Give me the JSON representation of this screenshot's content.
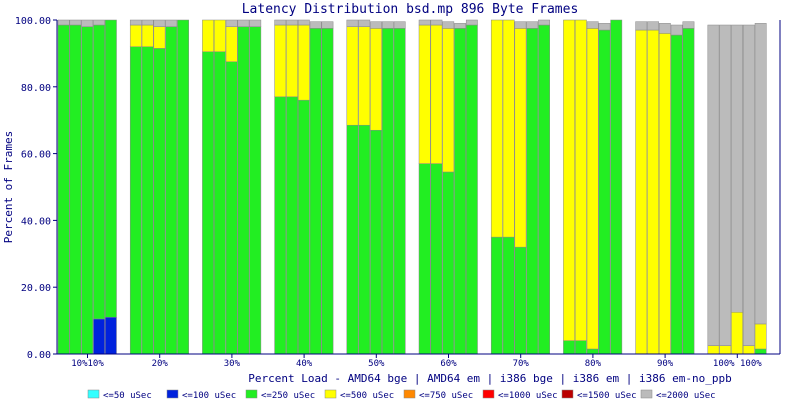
{
  "chart_data": {
    "type": "bar",
    "stacked": true,
    "title": "Latency Distribution bsd.mp 896 Byte Frames",
    "xlabel": "Percent Load - AMD64 bge | AMD64 em | i386 bge | i386 em | i386 em-no_ppb",
    "ylabel": "Percent of Frames",
    "ylim": [
      0,
      100
    ],
    "yticks": [
      "0.00",
      "20.00",
      "40.00",
      "60.00",
      "80.00",
      "100.00"
    ],
    "grid": false,
    "legend_position": "bottom",
    "categories": [
      "10%",
      "20%",
      "30%",
      "40%",
      "50%",
      "60%",
      "70%",
      "80%",
      "90%",
      "100%"
    ],
    "category_tick_labels": [
      "10%10%",
      "20%",
      "30%",
      "40%",
      "50%",
      "60%",
      "70%",
      "80%",
      "90%",
      "100% 100%"
    ],
    "bars_per_category": 5,
    "series": [
      {
        "name": "<=50 uSec",
        "color": "#33ffff",
        "values": [
          [
            0,
            0,
            0,
            0,
            0
          ],
          [
            0,
            0,
            0,
            0,
            0
          ],
          [
            0,
            0,
            0,
            0,
            0
          ],
          [
            0,
            0,
            0,
            0,
            0
          ],
          [
            0,
            0,
            0,
            0,
            0
          ],
          [
            0,
            0,
            0,
            0,
            0
          ],
          [
            0,
            0,
            0,
            0,
            0
          ],
          [
            0,
            0,
            0,
            0,
            0
          ],
          [
            0,
            0,
            0,
            0,
            0
          ],
          [
            0,
            0,
            0,
            0,
            0
          ]
        ]
      },
      {
        "name": "<=100 uSec",
        "color": "#0022dd",
        "values": [
          [
            0,
            0,
            0,
            10.5,
            11
          ],
          [
            0,
            0,
            0,
            0,
            0
          ],
          [
            0,
            0,
            0,
            0,
            0
          ],
          [
            0,
            0,
            0,
            0,
            0
          ],
          [
            0,
            0,
            0,
            0,
            0
          ],
          [
            0,
            0,
            0,
            0,
            0
          ],
          [
            0,
            0,
            0,
            0,
            0
          ],
          [
            0,
            0,
            0,
            0,
            0
          ],
          [
            0,
            0,
            0,
            0,
            0
          ],
          [
            0,
            0,
            0,
            0,
            0
          ]
        ]
      },
      {
        "name": "<=250 uSec",
        "color": "#22ee22",
        "values": [
          [
            98.5,
            98.5,
            98,
            88,
            89
          ],
          [
            92,
            92,
            91.5,
            98,
            100
          ],
          [
            90.5,
            90.5,
            87.5,
            98,
            98
          ],
          [
            77,
            77,
            76,
            97.5,
            97.5
          ],
          [
            68.5,
            68.5,
            67,
            97.5,
            97.5
          ],
          [
            57,
            57,
            54.5,
            97.5,
            98.5
          ],
          [
            35,
            35,
            32,
            97.5,
            98.5
          ],
          [
            4,
            4,
            1.5,
            97,
            100
          ],
          [
            0,
            0,
            0,
            95.5,
            97.5
          ],
          [
            0,
            0,
            0,
            0,
            1.5
          ]
        ]
      },
      {
        "name": "<=500 uSec",
        "color": "#ffff00",
        "values": [
          [
            0,
            0,
            0,
            0,
            0
          ],
          [
            6.5,
            6.5,
            6.5,
            0,
            0
          ],
          [
            9.5,
            9.5,
            10.5,
            0,
            0
          ],
          [
            21.5,
            21.5,
            22.5,
            0,
            0
          ],
          [
            29.5,
            29.5,
            30.5,
            0,
            0
          ],
          [
            41.5,
            41.5,
            43,
            0,
            0
          ],
          [
            65,
            65,
            65.5,
            0,
            0
          ],
          [
            96,
            96,
            96,
            0,
            0
          ],
          [
            97,
            97,
            96,
            0,
            0
          ],
          [
            2.5,
            2.5,
            12.5,
            2.5,
            7.5
          ]
        ]
      },
      {
        "name": "<=750 uSec",
        "color": "#ff8800",
        "values": [
          [
            0,
            0,
            0,
            0,
            0
          ],
          [
            0,
            0,
            0,
            0,
            0
          ],
          [
            0,
            0,
            0,
            0,
            0
          ],
          [
            0,
            0,
            0,
            0,
            0
          ],
          [
            0,
            0,
            0,
            0,
            0
          ],
          [
            0,
            0,
            0,
            0,
            0
          ],
          [
            0,
            0,
            0,
            0,
            0
          ],
          [
            0,
            0,
            0,
            0,
            0
          ],
          [
            0,
            0,
            0,
            0,
            0
          ],
          [
            0,
            0,
            0,
            0,
            0
          ]
        ]
      },
      {
        "name": "<=1000 uSec",
        "color": "#ff0000",
        "values": [
          [
            0,
            0,
            0,
            0,
            0
          ],
          [
            0,
            0,
            0,
            0,
            0
          ],
          [
            0,
            0,
            0,
            0,
            0
          ],
          [
            0,
            0,
            0,
            0,
            0
          ],
          [
            0,
            0,
            0,
            0,
            0
          ],
          [
            0,
            0,
            0,
            0,
            0
          ],
          [
            0,
            0,
            0,
            0,
            0
          ],
          [
            0,
            0,
            0,
            0,
            0
          ],
          [
            0,
            0,
            0,
            0,
            0
          ],
          [
            0,
            0,
            0,
            0,
            0
          ]
        ]
      },
      {
        "name": "<=1500 uSec",
        "color": "#bb0000",
        "values": [
          [
            0,
            0,
            0,
            0,
            0
          ],
          [
            0,
            0,
            0,
            0,
            0
          ],
          [
            0,
            0,
            0,
            0,
            0
          ],
          [
            0,
            0,
            0,
            0,
            0
          ],
          [
            0,
            0,
            0,
            0,
            0
          ],
          [
            0,
            0,
            0,
            0,
            0
          ],
          [
            0,
            0,
            0,
            0,
            0
          ],
          [
            0,
            0,
            0,
            0,
            0
          ],
          [
            0,
            0,
            0,
            0,
            0
          ],
          [
            0,
            0,
            0,
            0,
            0
          ]
        ]
      },
      {
        "name": "<=2000 uSec",
        "color": "#bbbbbb",
        "values": [
          [
            1.5,
            1.5,
            2,
            1.5,
            0
          ],
          [
            1.5,
            1.5,
            2,
            2,
            0
          ],
          [
            0,
            0,
            2,
            2,
            2
          ],
          [
            1.5,
            1.5,
            1.5,
            2,
            2
          ],
          [
            2,
            2,
            2,
            2,
            2
          ],
          [
            1.5,
            1.5,
            2,
            1.5,
            1.5
          ],
          [
            0,
            0,
            2,
            2,
            1.5
          ],
          [
            0,
            0,
            2,
            2,
            0
          ],
          [
            2.5,
            2.5,
            3,
            3,
            2
          ],
          [
            96,
            96,
            86,
            96,
            90
          ]
        ]
      }
    ]
  }
}
